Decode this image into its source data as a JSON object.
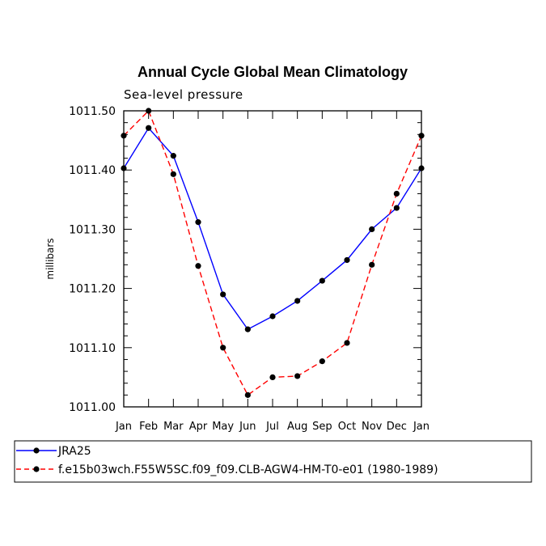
{
  "chart_data": {
    "type": "line",
    "title": "Annual Cycle Global Mean Climatology",
    "subtitle": "Sea-level pressure",
    "xlabel": "",
    "ylabel": "millibars",
    "categories": [
      "Jan",
      "Feb",
      "Mar",
      "Apr",
      "May",
      "Jun",
      "Jul",
      "Aug",
      "Sep",
      "Oct",
      "Nov",
      "Dec",
      "Jan"
    ],
    "ylim": [
      1011.0,
      1011.5
    ],
    "yticks": [
      "1011.00",
      "1011.10",
      "1011.20",
      "1011.30",
      "1011.40",
      "1011.50"
    ],
    "series": [
      {
        "name": "JRA25",
        "color": "#0000ff",
        "dash": "solid",
        "values": [
          1011.403,
          1011.471,
          1011.424,
          1011.312,
          1011.19,
          1011.131,
          1011.153,
          1011.179,
          1011.213,
          1011.248,
          1011.3,
          1011.336,
          1011.403
        ]
      },
      {
        "name": "f.e15b03wch.F55W5SC.f09_f09.CLB-AGW4-HM-T0-e01 (1980-1989)",
        "color": "#ff0000",
        "dash": "dashed",
        "values": [
          1011.458,
          1011.5,
          1011.393,
          1011.238,
          1011.1,
          1011.02,
          1011.05,
          1011.052,
          1011.077,
          1011.108,
          1011.24,
          1011.36,
          1011.458
        ]
      }
    ]
  }
}
